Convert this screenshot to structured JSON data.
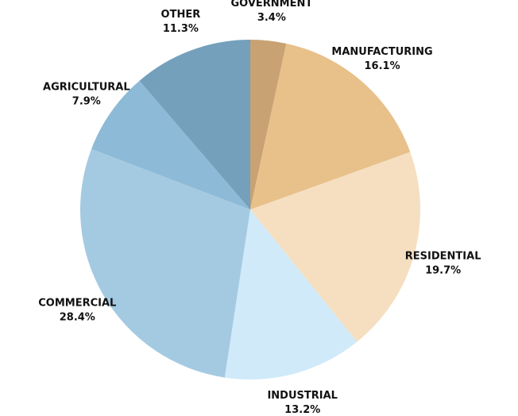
{
  "chart_data": {
    "type": "pie",
    "categories": [
      "GOVERNMENT",
      "MANUFACTURING",
      "RESIDENTIAL",
      "INDUSTRIAL",
      "COMMERCIAL",
      "AGRICULTURAL",
      "OTHER"
    ],
    "values": [
      3.4,
      16.1,
      19.7,
      13.2,
      28.4,
      7.9,
      11.3
    ],
    "value_labels": [
      "3.4%",
      "16.1%",
      "19.7%",
      "13.2%",
      "28.4%",
      "7.9%",
      "11.3%"
    ],
    "colors": [
      "#c9a273",
      "#e8c08a",
      "#f5dfc0",
      "#d0eafa",
      "#a4cae2",
      "#8dbad6",
      "#74a0bb"
    ]
  }
}
